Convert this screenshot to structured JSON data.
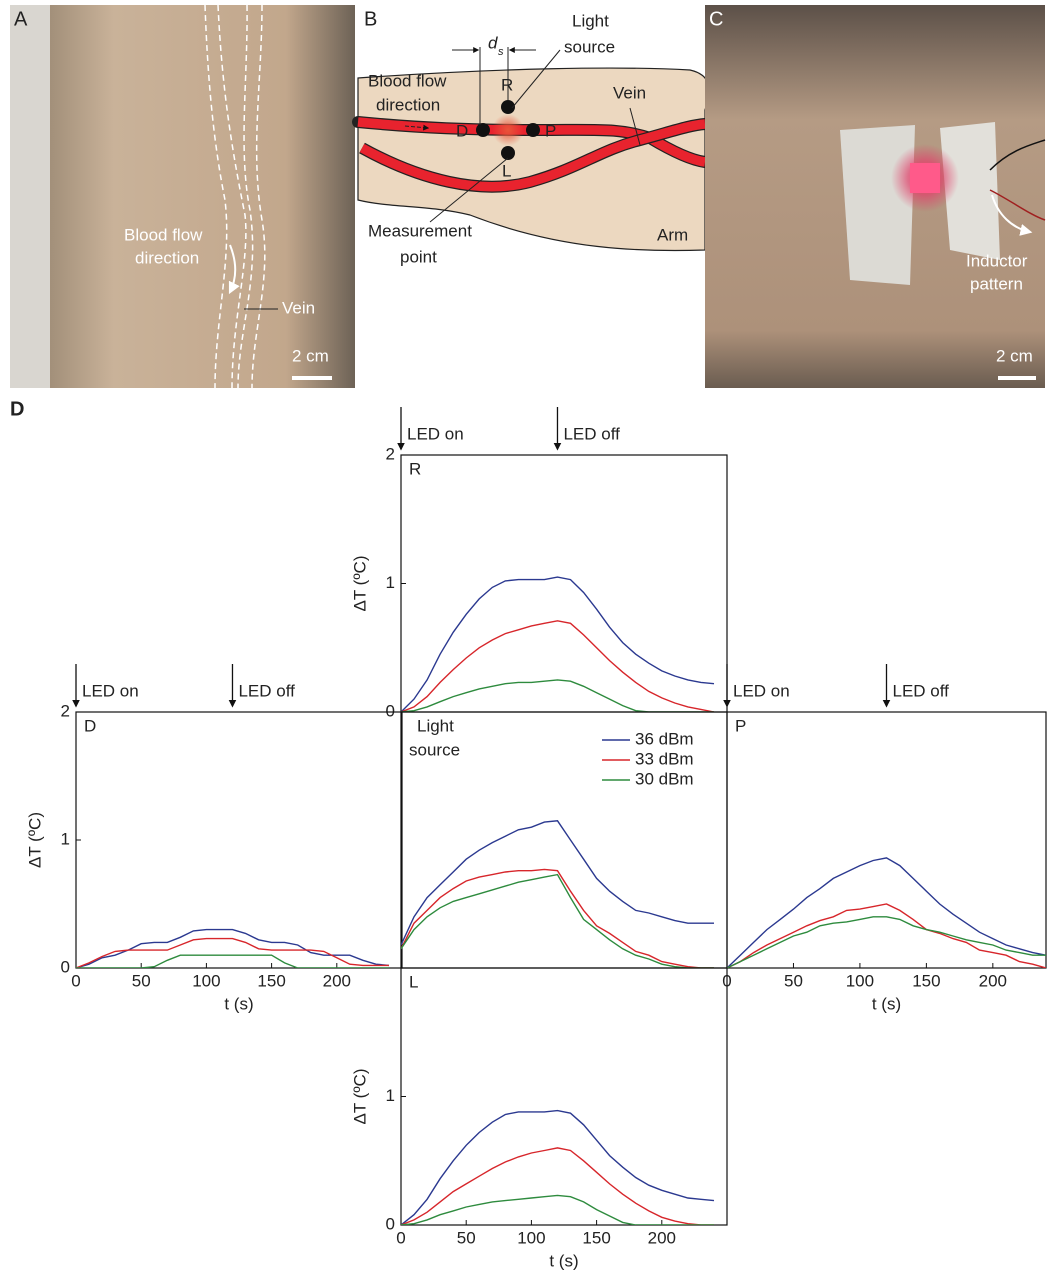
{
  "panels": {
    "A": {
      "label": "A",
      "blood_flow": [
        "Blood flow",
        "direction"
      ],
      "vein": "Vein",
      "scale": "2 cm"
    },
    "B": {
      "label": "B",
      "d": "d",
      "d_sub": "s",
      "light_source": [
        "Light",
        "source"
      ],
      "blood_flow": [
        "Blood flow",
        "direction"
      ],
      "R": "R",
      "D": "D",
      "P": "P",
      "L": "L",
      "vein": "Vein",
      "measurement": [
        "Measurement",
        "point"
      ],
      "arm": "Arm"
    },
    "C": {
      "label": "C",
      "inductor": [
        "Inductor",
        "pattern"
      ],
      "scale": "2 cm"
    },
    "D": {
      "label": "D"
    }
  },
  "chart_data": [
    {
      "type": "line",
      "label": [
        "R"
      ],
      "ylabel": "ΔT (ºC)",
      "x": [
        0,
        10,
        20,
        30,
        40,
        50,
        60,
        70,
        80,
        90,
        100,
        110,
        120,
        130,
        140,
        150,
        160,
        170,
        180,
        190,
        200,
        210,
        220,
        230,
        240
      ],
      "xlim": [
        0,
        250
      ],
      "ylim": [
        0,
        2
      ],
      "yticks": [
        0,
        1,
        2
      ],
      "annotations": [
        {
          "text": "LED on",
          "x": 0
        },
        {
          "text": "LED off",
          "x": 120
        }
      ],
      "series": [
        {
          "color": "#2b3990",
          "values": [
            0,
            0.1,
            0.25,
            0.45,
            0.62,
            0.76,
            0.88,
            0.97,
            1.02,
            1.03,
            1.03,
            1.03,
            1.05,
            1.03,
            0.93,
            0.8,
            0.66,
            0.54,
            0.45,
            0.38,
            0.32,
            0.28,
            0.25,
            0.23,
            0.22
          ]
        },
        {
          "color": "#d7262b",
          "values": [
            0,
            0.04,
            0.12,
            0.23,
            0.33,
            0.42,
            0.5,
            0.56,
            0.61,
            0.64,
            0.67,
            0.69,
            0.71,
            0.69,
            0.6,
            0.5,
            0.4,
            0.31,
            0.23,
            0.16,
            0.11,
            0.07,
            0.04,
            0.02,
            0
          ]
        },
        {
          "color": "#2e8b3e",
          "values": [
            0,
            0.01,
            0.04,
            0.08,
            0.12,
            0.15,
            0.18,
            0.2,
            0.22,
            0.23,
            0.23,
            0.24,
            0.25,
            0.24,
            0.2,
            0.15,
            0.1,
            0.05,
            0.01,
            0,
            0,
            0,
            0,
            0,
            0
          ]
        }
      ]
    },
    {
      "type": "line",
      "label": [
        "D"
      ],
      "ylabel": "ΔT (ºC)",
      "xlabel": "t (s)",
      "x": [
        0,
        10,
        20,
        30,
        40,
        50,
        60,
        70,
        80,
        90,
        100,
        110,
        120,
        130,
        140,
        150,
        160,
        170,
        180,
        190,
        200,
        210,
        220,
        230,
        240
      ],
      "xlim": [
        0,
        250
      ],
      "ylim": [
        0,
        2
      ],
      "yticks": [
        0,
        1,
        2
      ],
      "xticks": [
        0,
        50,
        100,
        150,
        200
      ],
      "annotations": [
        {
          "text": "LED on",
          "x": 0
        },
        {
          "text": "LED off",
          "x": 120
        }
      ],
      "series": [
        {
          "color": "#2b3990",
          "values": [
            0,
            0.03,
            0.08,
            0.1,
            0.14,
            0.19,
            0.2,
            0.2,
            0.24,
            0.29,
            0.3,
            0.3,
            0.3,
            0.27,
            0.22,
            0.2,
            0.2,
            0.18,
            0.12,
            0.1,
            0.1,
            0.1,
            0.06,
            0.03,
            0.02
          ]
        },
        {
          "color": "#d7262b",
          "values": [
            0,
            0.04,
            0.09,
            0.13,
            0.14,
            0.14,
            0.14,
            0.14,
            0.18,
            0.22,
            0.23,
            0.23,
            0.23,
            0.2,
            0.15,
            0.14,
            0.14,
            0.14,
            0.14,
            0.13,
            0.08,
            0.03,
            0.02,
            0.02,
            0.02
          ]
        },
        {
          "color": "#2e8b3e",
          "values": [
            0,
            0,
            0,
            0,
            0,
            0,
            0.01,
            0.06,
            0.1,
            0.1,
            0.1,
            0.1,
            0.1,
            0.1,
            0.1,
            0.1,
            0.04,
            0,
            0,
            0,
            0,
            0,
            0,
            0,
            0
          ]
        }
      ]
    },
    {
      "type": "line",
      "label": [
        "Light",
        "source"
      ],
      "x": [
        0,
        10,
        20,
        30,
        40,
        50,
        60,
        70,
        80,
        90,
        100,
        110,
        120,
        130,
        140,
        150,
        160,
        170,
        180,
        190,
        200,
        210,
        220,
        230,
        240
      ],
      "xlim": [
        0,
        250
      ],
      "ylim": [
        0,
        2
      ],
      "series": [
        {
          "name": "36 dBm",
          "color": "#2b3990",
          "values": [
            0.18,
            0.4,
            0.55,
            0.65,
            0.75,
            0.85,
            0.92,
            0.98,
            1.03,
            1.08,
            1.1,
            1.14,
            1.15,
            1.0,
            0.85,
            0.7,
            0.6,
            0.52,
            0.45,
            0.43,
            0.4,
            0.37,
            0.35,
            0.35,
            0.35
          ]
        },
        {
          "name": "33 dBm",
          "color": "#d7262b",
          "values": [
            0.15,
            0.35,
            0.45,
            0.55,
            0.62,
            0.68,
            0.71,
            0.73,
            0.75,
            0.76,
            0.76,
            0.77,
            0.76,
            0.6,
            0.45,
            0.33,
            0.27,
            0.2,
            0.13,
            0.1,
            0.05,
            0.03,
            0.01,
            0,
            0
          ]
        },
        {
          "name": "30 dBm",
          "color": "#2e8b3e",
          "values": [
            0.15,
            0.3,
            0.4,
            0.47,
            0.52,
            0.55,
            0.58,
            0.61,
            0.64,
            0.67,
            0.69,
            0.71,
            0.73,
            0.55,
            0.38,
            0.3,
            0.22,
            0.15,
            0.1,
            0.07,
            0.03,
            0.01,
            0,
            0,
            0
          ]
        }
      ]
    },
    {
      "type": "line",
      "label": [
        "P"
      ],
      "xlabel": "t (s)",
      "x": [
        0,
        10,
        20,
        30,
        40,
        50,
        60,
        70,
        80,
        90,
        100,
        110,
        120,
        130,
        140,
        150,
        160,
        170,
        180,
        190,
        200,
        210,
        220,
        230,
        240
      ],
      "xlim": [
        0,
        240
      ],
      "ylim": [
        0,
        2
      ],
      "xticks": [
        0,
        50,
        100,
        150,
        200
      ],
      "annotations": [
        {
          "text": "LED on",
          "x": 0
        },
        {
          "text": "LED off",
          "x": 120
        }
      ],
      "series": [
        {
          "color": "#2b3990",
          "values": [
            0,
            0.1,
            0.2,
            0.3,
            0.38,
            0.46,
            0.55,
            0.62,
            0.7,
            0.75,
            0.8,
            0.84,
            0.86,
            0.8,
            0.7,
            0.6,
            0.5,
            0.42,
            0.35,
            0.28,
            0.23,
            0.18,
            0.15,
            0.12,
            0.1
          ]
        },
        {
          "color": "#d7262b",
          "values": [
            0,
            0.05,
            0.12,
            0.18,
            0.23,
            0.28,
            0.33,
            0.37,
            0.4,
            0.45,
            0.46,
            0.48,
            0.5,
            0.45,
            0.38,
            0.3,
            0.27,
            0.23,
            0.2,
            0.14,
            0.12,
            0.1,
            0.05,
            0.03,
            0
          ]
        },
        {
          "color": "#2e8b3e",
          "values": [
            0,
            0.05,
            0.1,
            0.15,
            0.2,
            0.25,
            0.28,
            0.33,
            0.35,
            0.36,
            0.38,
            0.4,
            0.4,
            0.38,
            0.33,
            0.3,
            0.28,
            0.25,
            0.22,
            0.2,
            0.18,
            0.14,
            0.12,
            0.1,
            0.1
          ]
        }
      ]
    },
    {
      "type": "line",
      "label": [
        "L"
      ],
      "ylabel": "ΔT (ºC)",
      "xlabel": "t (s)",
      "x": [
        0,
        10,
        20,
        30,
        40,
        50,
        60,
        70,
        80,
        90,
        100,
        110,
        120,
        130,
        140,
        150,
        160,
        170,
        180,
        190,
        200,
        210,
        220,
        230,
        240
      ],
      "xlim": [
        0,
        250
      ],
      "ylim": [
        0,
        2
      ],
      "yticks": [
        0,
        1
      ],
      "xticks": [
        0,
        50,
        100,
        150,
        200
      ],
      "series": [
        {
          "color": "#2b3990",
          "values": [
            0,
            0.08,
            0.2,
            0.36,
            0.5,
            0.62,
            0.72,
            0.8,
            0.86,
            0.88,
            0.88,
            0.88,
            0.89,
            0.87,
            0.78,
            0.66,
            0.54,
            0.45,
            0.37,
            0.31,
            0.27,
            0.24,
            0.21,
            0.2,
            0.19
          ]
        },
        {
          "color": "#d7262b",
          "values": [
            0,
            0.04,
            0.1,
            0.18,
            0.26,
            0.32,
            0.38,
            0.44,
            0.49,
            0.53,
            0.56,
            0.58,
            0.6,
            0.58,
            0.5,
            0.41,
            0.32,
            0.24,
            0.17,
            0.11,
            0.06,
            0.03,
            0.01,
            0,
            0
          ]
        },
        {
          "color": "#2e8b3e",
          "values": [
            0,
            0.01,
            0.04,
            0.08,
            0.11,
            0.14,
            0.16,
            0.18,
            0.19,
            0.2,
            0.21,
            0.22,
            0.23,
            0.22,
            0.18,
            0.12,
            0.07,
            0.02,
            0,
            0,
            0,
            0,
            0,
            0,
            0
          ]
        }
      ]
    }
  ]
}
